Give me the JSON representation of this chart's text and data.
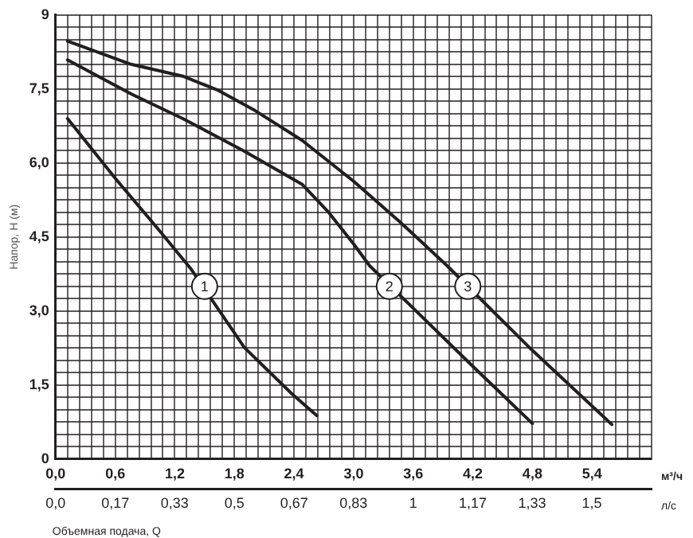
{
  "chart_data": {
    "type": "line",
    "xlabel": "м³/ч",
    "x2label": "л/с",
    "ylabel": "Напор, H (м)",
    "annotations": [
      {
        "text": "1",
        "x": 1.5,
        "y": 3.5
      },
      {
        "text": "2",
        "x": 3.36,
        "y": 3.5
      },
      {
        "text": "3",
        "x": 4.15,
        "y": 3.5
      },
      "Объемная подача, Q"
    ],
    "series": [
      {
        "color": "#231f20",
        "x": [
          0.12,
          0.6,
          1.02,
          1.36,
          1.9,
          2.38,
          2.63
        ],
        "values": [
          6.9,
          5.69,
          4.69,
          3.86,
          2.26,
          1.32,
          0.88
        ]
      },
      {
        "color": "#231f20",
        "x": [
          0.12,
          0.76,
          1.28,
          1.9,
          2.48,
          2.74,
          3.0,
          3.16,
          4.2,
          4.8
        ],
        "values": [
          8.09,
          7.4,
          6.9,
          6.24,
          5.57,
          5.02,
          4.36,
          3.92,
          1.88,
          0.72
        ]
      },
      {
        "color": "#231f20",
        "x": [
          0.12,
          0.76,
          1.28,
          1.64,
          2.01,
          2.48,
          3.0,
          3.47,
          3.94,
          4.77,
          5.6
        ],
        "values": [
          8.47,
          8.0,
          7.76,
          7.47,
          7.06,
          6.46,
          5.63,
          4.8,
          3.92,
          2.26,
          0.7
        ]
      }
    ],
    "xlim": [
      0,
      6
    ],
    "xticks": [
      {
        "value": 0,
        "label": "0,0"
      },
      {
        "value": 0.12,
        "label": null
      },
      {
        "value": 0.24,
        "label": null
      },
      {
        "value": 0.36,
        "label": null
      },
      {
        "value": 0.48,
        "label": null
      },
      {
        "value": 0.6,
        "label": "0,6"
      },
      {
        "value": 0.72,
        "label": null
      },
      {
        "value": 0.84,
        "label": null
      },
      {
        "value": 0.96,
        "label": null
      },
      {
        "value": 1.08,
        "label": null
      },
      {
        "value": 1.2,
        "label": "1,2"
      },
      {
        "value": 1.32,
        "label": null
      },
      {
        "value": 1.44,
        "label": null
      },
      {
        "value": 1.56,
        "label": null
      },
      {
        "value": 1.68,
        "label": null
      },
      {
        "value": 1.8,
        "label": "1,8"
      },
      {
        "value": 1.92,
        "label": null
      },
      {
        "value": 2.04,
        "label": null
      },
      {
        "value": 2.16,
        "label": null
      },
      {
        "value": 2.28,
        "label": null
      },
      {
        "value": 2.4,
        "label": "2,4"
      },
      {
        "value": 2.52,
        "label": null
      },
      {
        "value": 2.64,
        "label": null
      },
      {
        "value": 2.76,
        "label": null
      },
      {
        "value": 2.88,
        "label": null
      },
      {
        "value": 3.0,
        "label": "3,0"
      },
      {
        "value": 3.12,
        "label": null
      },
      {
        "value": 3.24,
        "label": null
      },
      {
        "value": 3.36,
        "label": null
      },
      {
        "value": 3.48,
        "label": null
      },
      {
        "value": 3.6,
        "label": "3,6"
      },
      {
        "value": 3.72,
        "label": null
      },
      {
        "value": 3.84,
        "label": null
      },
      {
        "value": 3.96,
        "label": null
      },
      {
        "value": 4.08,
        "label": null
      },
      {
        "value": 4.2,
        "label": "4,2"
      },
      {
        "value": 4.32,
        "label": null
      },
      {
        "value": 4.44,
        "label": null
      },
      {
        "value": 4.56,
        "label": null
      },
      {
        "value": 4.68,
        "label": null
      },
      {
        "value": 4.8,
        "label": "4,8"
      },
      {
        "value": 4.92,
        "label": null
      },
      {
        "value": 5.04,
        "label": null
      },
      {
        "value": 5.16,
        "label": null
      },
      {
        "value": 5.28,
        "label": null
      },
      {
        "value": 5.4,
        "label": "5,4"
      },
      {
        "value": 5.52,
        "label": null
      },
      {
        "value": 5.64,
        "label": null
      },
      {
        "value": 5.76,
        "label": null
      },
      {
        "value": 5.88,
        "label": null
      },
      {
        "value": 6.0,
        "label": null
      }
    ],
    "x2lim": [
      0,
      1.667
    ],
    "x2ticks": [
      {
        "value": 0,
        "label": "0,0"
      },
      {
        "value": 0.167,
        "label": "0,17"
      },
      {
        "value": 0.333,
        "label": "0,33"
      },
      {
        "value": 0.5,
        "label": "0,5"
      },
      {
        "value": 0.667,
        "label": "0,67"
      },
      {
        "value": 0.833,
        "label": "0,83"
      },
      1,
      {
        "value": 1.167,
        "label": "1,17"
      },
      {
        "value": 1.333,
        "label": "1,33"
      },
      {
        "value": 1.5,
        "label": "1,5"
      }
    ],
    "ylim": [
      0,
      9
    ],
    "yticks": [
      0,
      {
        "value": 0.25,
        "label": null
      },
      {
        "value": 0.5,
        "label": null
      },
      {
        "value": 0.75,
        "label": null
      },
      {
        "value": 1,
        "label": null
      },
      {
        "value": 1.25,
        "label": null
      },
      {
        "value": 1.5,
        "label": "1,5"
      },
      {
        "value": 1.75,
        "label": null
      },
      {
        "value": 2,
        "label": null
      },
      {
        "value": 2.25,
        "label": null
      },
      {
        "value": 2.5,
        "label": null
      },
      {
        "value": 2.75,
        "label": null
      },
      {
        "value": 3,
        "label": "3,0"
      },
      {
        "value": 3.25,
        "label": null
      },
      {
        "value": 3.5,
        "label": null
      },
      {
        "value": 3.75,
        "label": null
      },
      {
        "value": 4,
        "label": null
      },
      {
        "value": 4.25,
        "label": null
      },
      {
        "value": 4.5,
        "label": "4,5"
      },
      {
        "value": 4.75,
        "label": null
      },
      {
        "value": 5,
        "label": null
      },
      {
        "value": 5.25,
        "label": null
      },
      {
        "value": 5.5,
        "label": null
      },
      {
        "value": 5.75,
        "label": null
      },
      {
        "value": 6,
        "label": "6,0"
      },
      {
        "value": 6.25,
        "label": null
      },
      {
        "value": 6.5,
        "label": null
      },
      {
        "value": 6.75,
        "label": null
      },
      {
        "value": 7,
        "label": null
      },
      {
        "value": 7.25,
        "label": null
      },
      {
        "value": 7.5,
        "label": "7,5"
      },
      {
        "value": 7.75,
        "label": null
      },
      {
        "value": 8,
        "label": null
      },
      {
        "value": 8.25,
        "label": null
      },
      {
        "value": 8.5,
        "label": null
      },
      {
        "value": 8.75,
        "label": null
      },
      9
    ],
    "grid": true
  }
}
